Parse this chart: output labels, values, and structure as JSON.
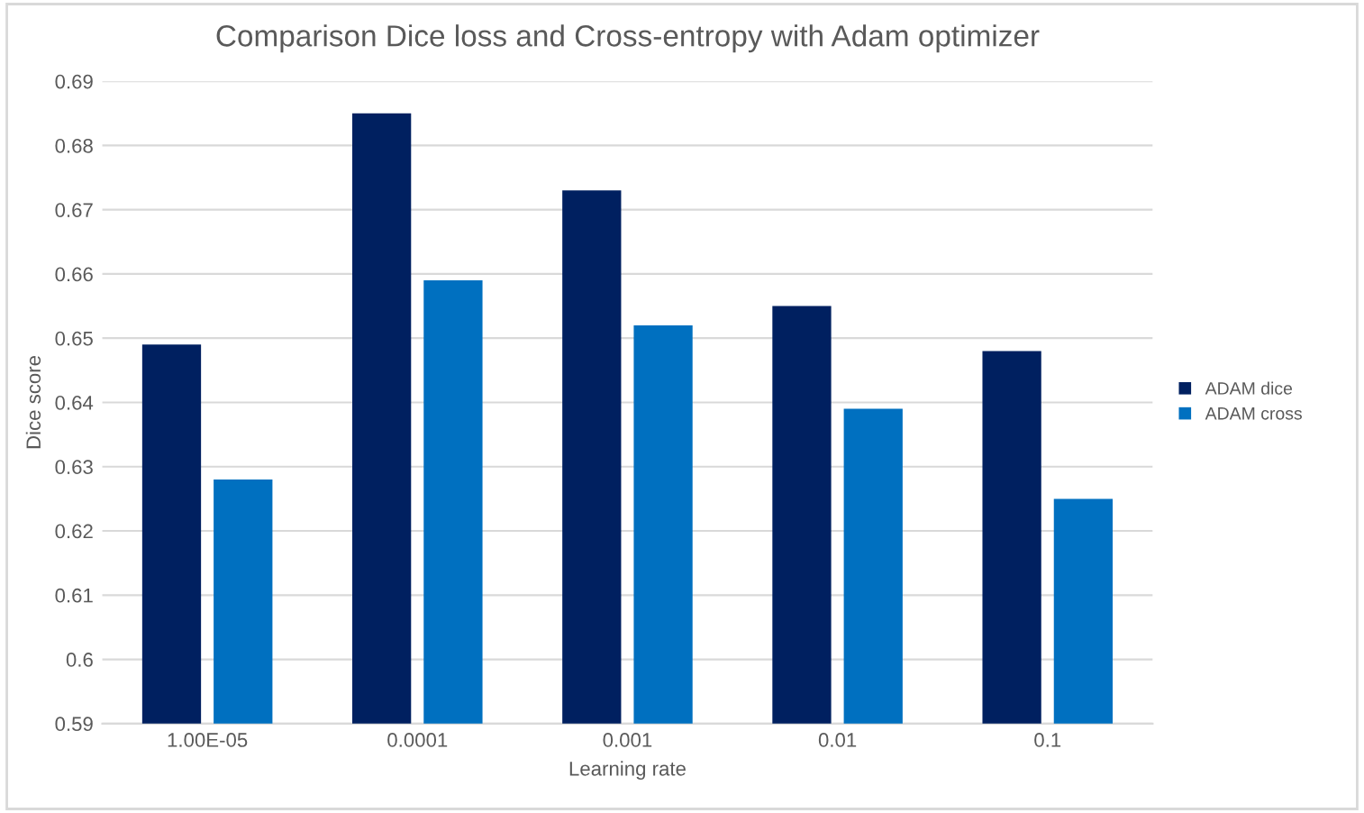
{
  "chart_data": {
    "type": "bar",
    "title": "Comparison Dice loss and Cross-entropy with Adam optimizer",
    "xlabel": "Learning rate",
    "ylabel": "Dice score",
    "categories": [
      "1.00E-05",
      "0.0001",
      "0.001",
      "0.01",
      "0.1"
    ],
    "series": [
      {
        "name": "ADAM dice",
        "color": "#002060",
        "values": [
          0.649,
          0.685,
          0.673,
          0.655,
          0.648
        ]
      },
      {
        "name": "ADAM cross",
        "color": "#0070c0",
        "values": [
          0.628,
          0.659,
          0.652,
          0.639,
          0.625
        ]
      }
    ],
    "ylim": [
      0.59,
      0.69
    ],
    "yticks": [
      0.59,
      0.6,
      0.61,
      0.62,
      0.63,
      0.64,
      0.65,
      0.66,
      0.67,
      0.68,
      0.69
    ],
    "grid": "y",
    "legend": "right"
  }
}
